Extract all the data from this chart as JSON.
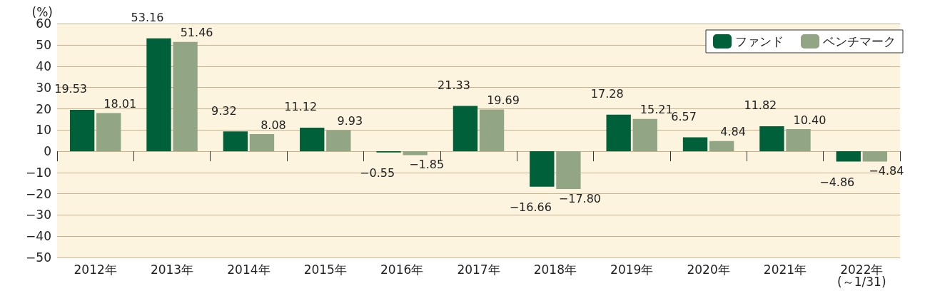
{
  "chart_data": {
    "type": "bar",
    "ylabel": "(%)",
    "categories": [
      "2012年",
      "2013年",
      "2014年",
      "2015年",
      "2016年",
      "2017年",
      "2018年",
      "2019年",
      "2020年",
      "2021年",
      "2022年\n(～1/31)"
    ],
    "series": [
      {
        "name": "ファンド",
        "color": "#00603a",
        "values": [
          19.53,
          53.16,
          9.32,
          11.12,
          -0.55,
          21.33,
          -16.66,
          17.28,
          6.57,
          11.82,
          -4.86
        ],
        "value_labels": [
          "19.53",
          "53.16",
          "9.32",
          "11.12",
          "−0.55",
          "21.33",
          "−16.66",
          "17.28",
          "6.57",
          "11.82",
          "−4.86"
        ]
      },
      {
        "name": "ベンチマーク",
        "color": "#92a585",
        "values": [
          18.01,
          51.46,
          8.08,
          9.93,
          -1.85,
          19.69,
          -17.8,
          15.21,
          4.84,
          10.4,
          -4.84
        ],
        "value_labels": [
          "18.01",
          "51.46",
          "8.08",
          "9.93",
          "−1.85",
          "19.69",
          "−17.80",
          "15.21",
          "4.84",
          "10.40",
          "−4.84"
        ]
      }
    ],
    "ylim": [
      -50,
      60
    ],
    "yticks": [
      {
        "value": -50,
        "label": "−50"
      },
      {
        "value": -40,
        "label": "−40"
      },
      {
        "value": -30,
        "label": "−30"
      },
      {
        "value": -20,
        "label": "−20"
      },
      {
        "value": -10,
        "label": "−10"
      },
      0,
      10,
      20,
      30,
      40,
      50,
      60
    ],
    "grid": "y",
    "legend": "top right"
  }
}
